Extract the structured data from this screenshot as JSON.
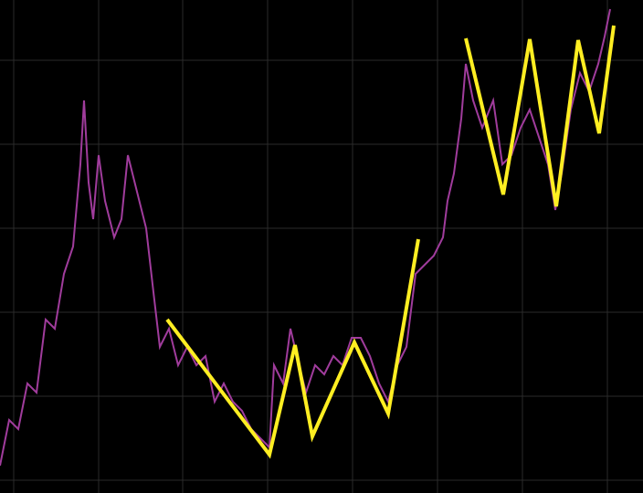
{
  "chart_data": {
    "type": "line",
    "xlim": [
      0,
      704
    ],
    "ylim": [
      0,
      540
    ],
    "xticks": [
      15,
      108,
      200,
      293,
      386,
      479,
      572,
      665
    ],
    "yticks": [
      14,
      106,
      198,
      290,
      382,
      474
    ],
    "grid": true,
    "grid_color": "#2a2a2a",
    "background": "#000000",
    "series": [
      {
        "color": "#a03c9c",
        "width": 2,
        "x": [
          0,
          10,
          20,
          30,
          40,
          50,
          60,
          70,
          80,
          88,
          92,
          97,
          102,
          108,
          115,
          125,
          133,
          140,
          150,
          160,
          168,
          175,
          185,
          195,
          205,
          215,
          225,
          235,
          245,
          255,
          265,
          275,
          285,
          295,
          300,
          310,
          318,
          325,
          335,
          345,
          355,
          365,
          375,
          385,
          395,
          405,
          415,
          425,
          435,
          445,
          455,
          465,
          475,
          485,
          490,
          497,
          505,
          510,
          518,
          528,
          540,
          550,
          560,
          570,
          580,
          590,
          600,
          608,
          615,
          625,
          635,
          645,
          655,
          662,
          668
        ],
        "values": [
          30,
          80,
          70,
          120,
          110,
          190,
          180,
          240,
          270,
          360,
          430,
          340,
          300,
          370,
          320,
          280,
          300,
          370,
          330,
          290,
          220,
          160,
          180,
          140,
          160,
          140,
          150,
          100,
          120,
          100,
          90,
          70,
          60,
          50,
          140,
          120,
          180,
          150,
          110,
          140,
          130,
          150,
          140,
          170,
          170,
          150,
          120,
          100,
          140,
          160,
          240,
          250,
          260,
          280,
          320,
          350,
          410,
          470,
          430,
          400,
          430,
          360,
          370,
          400,
          420,
          390,
          360,
          310,
          350,
          420,
          460,
          440,
          470,
          500,
          530
        ]
      },
      {
        "color": "#ffee22",
        "width": 4,
        "x": [
          183,
          295,
          323,
          342,
          388,
          425,
          458,
          null,
          510,
          551,
          580,
          609,
          633,
          656,
          672
        ],
        "values": [
          190,
          42,
          162,
          62,
          165,
          87,
          278,
          null,
          498,
          327,
          497,
          314,
          496,
          394,
          512
        ]
      }
    ]
  }
}
